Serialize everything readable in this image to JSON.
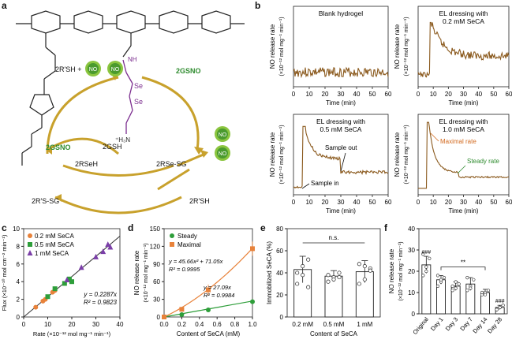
{
  "panel_labels": {
    "a": "a",
    "b": "b",
    "c": "c",
    "d": "d",
    "e": "e",
    "f": "f"
  },
  "panel_a": {
    "rsh": "2R'SH +",
    "no": "NO",
    "gsno_right": "2GSNO",
    "gsno_left": "2GSNO",
    "se": "Se",
    "nh": "NH",
    "h3n": "⁺H₃N",
    "gsh": "2GSH",
    "rseh": "2RSeH",
    "rsesg": "2RSe-SG",
    "rssg": "2R'S-SG",
    "rsh2": "2R'SH"
  },
  "panel_b": {
    "ylabel": "NO release rate",
    "yunit": "(×10⁻¹² mol mg⁻¹ min⁻¹)",
    "xlabel": "Time (min)",
    "xticks": [
      "0",
      "10",
      "20",
      "30",
      "40",
      "50",
      "60"
    ],
    "titles": [
      "Blank hydrogel",
      "EL dressing with",
      "EL dressing with",
      "EL dressing with"
    ],
    "subtitles": [
      "",
      "0.2 mM SeCA",
      "0.5 mM SeCA",
      "1.0 mM SeCA"
    ],
    "ann_sample_out": "Sample out",
    "ann_sample_in": "Sample in",
    "ann_maximal": "Maximal rate",
    "ann_steady": "Steady rate",
    "trace_color": "#8B5A1E"
  },
  "chart_data": [
    {
      "type": "scatter",
      "panel": "c",
      "xlabel": "Rate (×10⁻¹² mol mg⁻¹ min⁻¹)",
      "ylabel": "Flux (×10⁻¹⁰ mol cm⁻² min⁻¹)",
      "xlim": [
        0,
        40
      ],
      "ylim": [
        0,
        10
      ],
      "xticks": [
        "0",
        "10",
        "20",
        "30",
        "40"
      ],
      "yticks": [
        "0",
        "2",
        "4",
        "6",
        "8",
        "10"
      ],
      "series": [
        {
          "name": "0.2 mM SeCA",
          "color": "#E8823A",
          "marker": "circle",
          "points": [
            [
              5,
              1.1
            ],
            [
              8,
              1.8
            ],
            [
              9,
              2.0
            ],
            [
              12,
              2.8
            ],
            [
              13,
              3.0
            ]
          ]
        },
        {
          "name": "0.5 mM SeCA",
          "color": "#2E9E3A",
          "marker": "square",
          "points": [
            [
              10,
              2.3
            ],
            [
              13,
              3.2
            ],
            [
              17,
              3.8
            ],
            [
              19,
              4.3
            ],
            [
              20,
              4.0
            ]
          ]
        },
        {
          "name": "1 mM SeCA",
          "color": "#7B3FA8",
          "marker": "triangle",
          "points": [
            [
              18,
              4.2
            ],
            [
              24,
              5.6
            ],
            [
              30,
              6.8
            ],
            [
              33,
              7.4
            ],
            [
              35,
              8.2
            ],
            [
              36,
              7.9
            ]
          ]
        }
      ],
      "fit_equation": "y = 0.2287x",
      "fit_r2": "R² = 0.9823",
      "fit_slope": 0.2287
    },
    {
      "type": "line",
      "panel": "d",
      "xlabel": "Content of SeCA (mM)",
      "ylabel": "NO release rate",
      "yunit": "(×10⁻¹² mol mg⁻¹ min⁻¹)",
      "xlim": [
        0,
        1.0
      ],
      "ylim": [
        0,
        150
      ],
      "xticks": [
        "0.0",
        "0.2",
        "0.4",
        "0.6",
        "0.8",
        "1.0"
      ],
      "yticks": [
        "0",
        "30",
        "60",
        "90",
        "120",
        "150"
      ],
      "x": [
        0,
        0.2,
        0.5,
        1.0
      ],
      "series": [
        {
          "name": "Steady",
          "color": "#2E9E3A",
          "marker": "circle",
          "values": [
            0,
            4,
            12,
            26
          ],
          "errors": [
            0,
            1,
            3,
            4
          ]
        },
        {
          "name": "Maximal",
          "color": "#E8823A",
          "marker": "square",
          "values": [
            0,
            13,
            46,
            116
          ],
          "errors": [
            0,
            3,
            9,
            12
          ]
        }
      ],
      "eq_max": "y = 45.66x² + 71.05x",
      "r2_max": "R² = 0.9995",
      "eq_steady": "y = 27.09x",
      "r2_steady": "R² = 0.9984"
    },
    {
      "type": "bar",
      "panel": "e",
      "xlabel": "Content of SeCA",
      "ylabel": "Immobilized SeCA (%)",
      "ylim": [
        0,
        80
      ],
      "yticks": [
        "0",
        "20",
        "40",
        "60",
        "80"
      ],
      "categories": [
        "0.2 mM",
        "0.5 mM",
        "1 mM"
      ],
      "values": [
        43,
        37,
        41
      ],
      "errors": [
        12,
        5,
        10
      ],
      "points": [
        [
          30,
          46,
          52,
          40,
          38,
          27
        ],
        [
          32,
          36,
          40,
          38,
          34,
          36
        ],
        [
          30,
          34,
          44,
          48,
          46,
          42
        ]
      ],
      "significance": "n.s."
    },
    {
      "type": "bar",
      "panel": "f",
      "ylabel": "NO release rate",
      "yunit": "(×10⁻¹² mol mg⁻¹ min⁻¹)",
      "ylim": [
        0,
        40
      ],
      "yticks": [
        "0",
        "10",
        "20",
        "30",
        "40"
      ],
      "categories": [
        "Original",
        "Day 1",
        "Day 3",
        "Day 7",
        "Day 14",
        "Day 28"
      ],
      "values": [
        23,
        16,
        13,
        14,
        10,
        3
      ],
      "errors": [
        4,
        2,
        2,
        3,
        1.5,
        1
      ],
      "points": [
        [
          18,
          22,
          26,
          28,
          20
        ],
        [
          13,
          15,
          17,
          18,
          16
        ],
        [
          11,
          12,
          14,
          13,
          15
        ],
        [
          11,
          13,
          16,
          17,
          12
        ],
        [
          9,
          10,
          11,
          10,
          9
        ],
        [
          2,
          3,
          4,
          2,
          3
        ]
      ],
      "annotations": [
        {
          "bar": "Original",
          "text": "###"
        },
        {
          "bar": "Day 28",
          "text": "###"
        }
      ],
      "bracket": {
        "from": "Day 1",
        "to": "Day 14",
        "text": "**"
      }
    }
  ]
}
